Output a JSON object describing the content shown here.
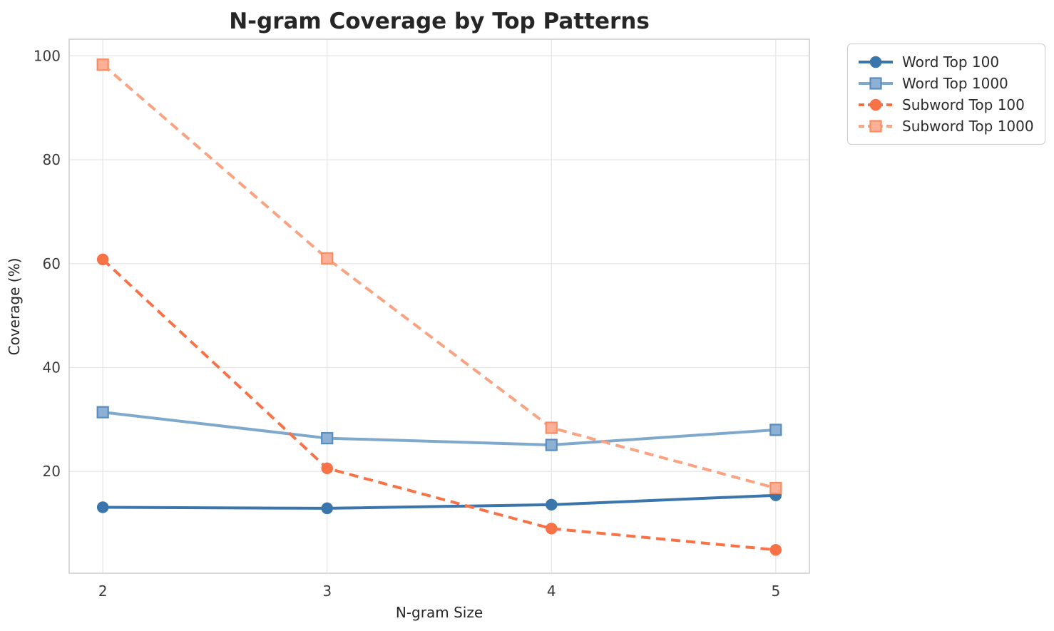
{
  "chart_data": {
    "type": "line",
    "title": "N-gram Coverage by Top Patterns",
    "xlabel": "N-gram Size",
    "ylabel": "Coverage (%)",
    "x": [
      2,
      3,
      4,
      5
    ],
    "x_ticks": [
      2,
      3,
      4,
      5
    ],
    "y_ticks": [
      20,
      40,
      60,
      80,
      100
    ],
    "xlim": [
      1.85,
      5.15
    ],
    "ylim": [
      0.4,
      103.2
    ],
    "grid": true,
    "legend_position": "outside-top-right",
    "series": [
      {
        "name": "Word Top 100",
        "values": [
          13.1,
          12.9,
          13.6,
          15.4
        ],
        "color": "#3a76ab",
        "line_style": "solid",
        "marker": "circle",
        "marker_fill": "#3a76ab",
        "marker_edge": "#3a76ab"
      },
      {
        "name": "Word Top 1000",
        "values": [
          31.4,
          26.4,
          25.1,
          28.0
        ],
        "color": "#7fa8cd",
        "line_style": "solid",
        "marker": "square",
        "marker_fill": "#8db1d4",
        "marker_edge": "#5a8dbd"
      },
      {
        "name": "Subword Top 100",
        "values": [
          60.8,
          20.6,
          9.0,
          4.9
        ],
        "color": "#f87247",
        "line_style": "dashed",
        "marker": "circle",
        "marker_fill": "#f87247",
        "marker_edge": "#f87247"
      },
      {
        "name": "Subword Top 1000",
        "values": [
          98.3,
          61.0,
          28.4,
          16.8
        ],
        "color": "#faa383",
        "line_style": "dashed",
        "marker": "square",
        "marker_fill": "#fbb097",
        "marker_edge": "#f88d63"
      }
    ],
    "style": {
      "grid_color": "#e7e7e7",
      "spine_color": "#cccccc",
      "background": "#ffffff",
      "title_color": "#262626",
      "tick_color": "#3a3a3a"
    }
  }
}
